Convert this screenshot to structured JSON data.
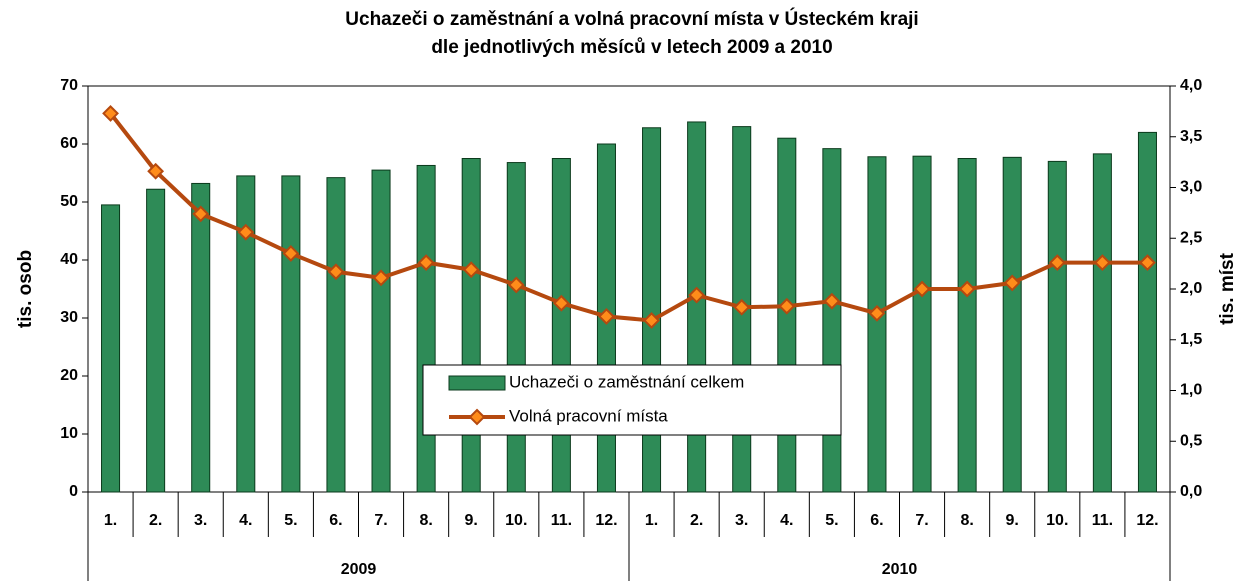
{
  "chart_data": {
    "type": "bar_line",
    "title": [
      "Uchazeči o zaměstnání a volná pracovní místa v Ústeckém kraji",
      "dle jednotlivých měsíců v letech 2009 a 2010"
    ],
    "y_label": "tis. osob",
    "y2_label": "tis. míst",
    "categories": [
      "1.",
      "2.",
      "3.",
      "4.",
      "5.",
      "6.",
      "7.",
      "8.",
      "9.",
      "10.",
      "11.",
      "12.",
      "1.",
      "2.",
      "3.",
      "4.",
      "5.",
      "6.",
      "7.",
      "8.",
      "9.",
      "10.",
      "11.",
      "12."
    ],
    "groups": [
      "2009",
      "2010"
    ],
    "series": [
      {
        "name": "Uchazeči o zaměstnání celkem",
        "type": "bar",
        "color": "#2e8b57",
        "values": [
          49.5,
          52.2,
          53.2,
          54.5,
          54.5,
          54.2,
          55.5,
          56.3,
          57.5,
          56.8,
          57.5,
          60,
          62.8,
          63.8,
          63,
          61,
          59.2,
          57.8,
          57.9,
          57.5,
          57.7,
          57,
          58.3,
          62
        ]
      },
      {
        "name": "Volná pracovní místa",
        "type": "line",
        "axis": "y2",
        "color": "#b5490f",
        "marker_color": "#ff8c1a",
        "values": [
          3.73,
          3.16,
          2.74,
          2.56,
          2.35,
          2.17,
          2.11,
          2.26,
          2.19,
          2.04,
          1.86,
          1.73,
          1.69,
          1.94,
          1.82,
          1.83,
          1.88,
          1.76,
          2.0,
          2.0,
          2.06,
          2.26,
          2.26,
          2.26
        ]
      }
    ],
    "ylim": [
      0,
      70
    ],
    "yticks": [
      0,
      10,
      20,
      30,
      40,
      50,
      60,
      70
    ],
    "y2lim": [
      0,
      4
    ],
    "y2ticks": [
      {
        "value": 0,
        "label": "0,0"
      },
      {
        "value": 0.5,
        "label": "0,5"
      },
      {
        "value": 1,
        "label": "1,0"
      },
      {
        "value": 1.5,
        "label": "1,5"
      },
      {
        "value": 2,
        "label": "2,0"
      },
      {
        "value": 2.5,
        "label": "2,5"
      },
      {
        "value": 3,
        "label": "3,0"
      },
      {
        "value": 3.5,
        "label": "3,5"
      },
      {
        "value": 4,
        "label": "4,0"
      }
    ],
    "legend": "center"
  }
}
